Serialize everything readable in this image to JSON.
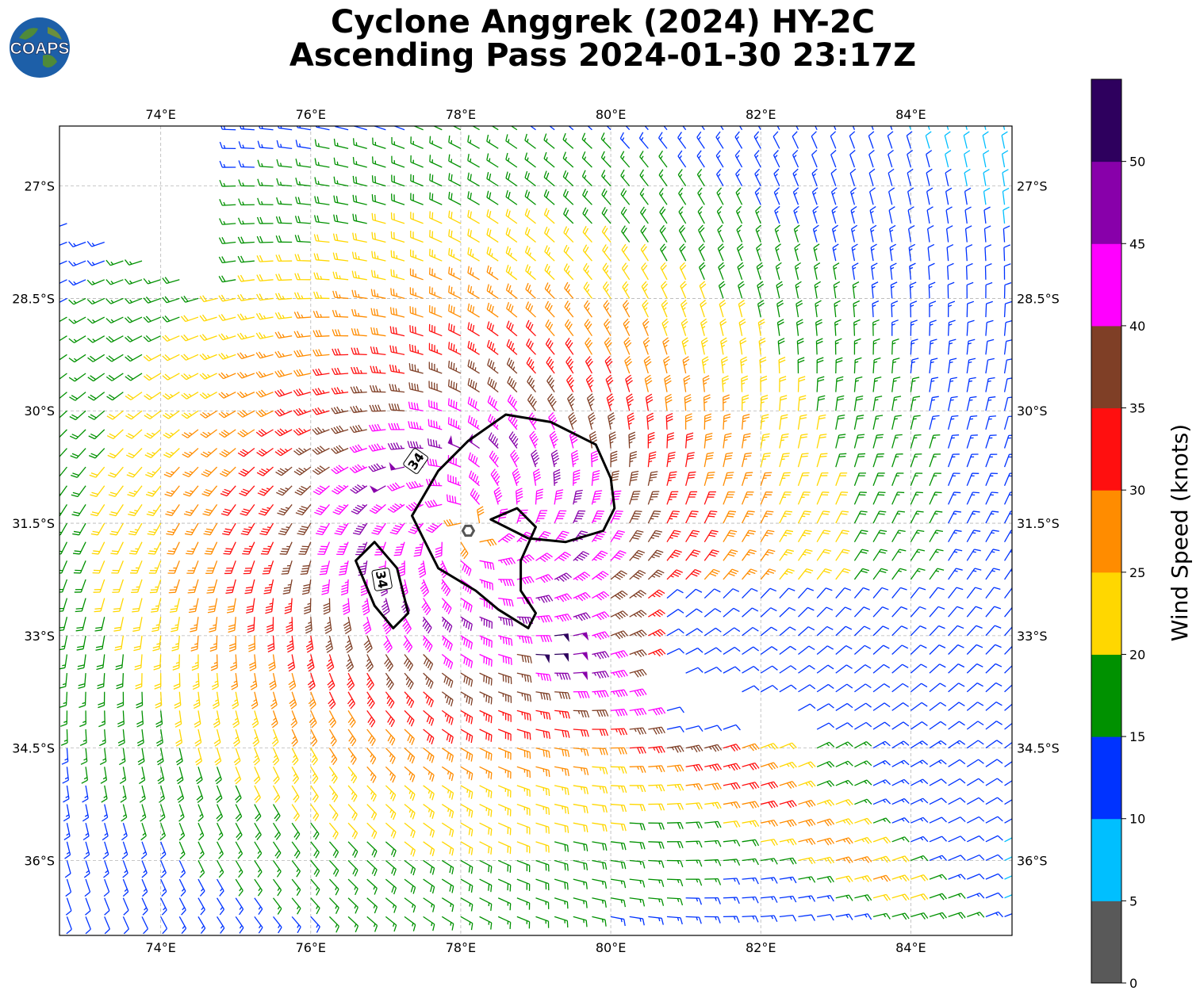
{
  "title": {
    "line1": "Cyclone Anggrek (2024) HY-2C",
    "line2": "Ascending Pass 2024-01-30 23:17Z"
  },
  "logo": {
    "text": "COAPS"
  },
  "map": {
    "lon_range": [
      72.65,
      85.35
    ],
    "lat_range": [
      -37.0,
      -26.2
    ],
    "lon_ticks": [
      "74°E",
      "76°E",
      "78°E",
      "80°E",
      "82°E",
      "84°E"
    ],
    "lat_ticks": [
      "27°S",
      "28.5°S",
      "30°S",
      "31.5°S",
      "33°S",
      "34.5°S",
      "36°S"
    ],
    "grid": true,
    "storm_center": {
      "lon": 78.1,
      "lat": -31.6
    },
    "contour_label": "34",
    "contour_34kt_main": [
      [
        78.6,
        -30.05
      ],
      [
        79.2,
        -30.15
      ],
      [
        79.8,
        -30.45
      ],
      [
        80.0,
        -30.9
      ],
      [
        80.05,
        -31.3
      ],
      [
        79.9,
        -31.6
      ],
      [
        79.4,
        -31.75
      ],
      [
        78.9,
        -31.7
      ],
      [
        78.4,
        -31.45
      ],
      [
        78.75,
        -31.3
      ],
      [
        79.0,
        -31.55
      ],
      [
        78.8,
        -32.0
      ],
      [
        78.8,
        -32.4
      ],
      [
        79.0,
        -32.7
      ],
      [
        78.9,
        -32.9
      ],
      [
        78.5,
        -32.65
      ],
      [
        78.2,
        -32.4
      ],
      [
        77.7,
        -32.1
      ],
      [
        77.5,
        -31.7
      ],
      [
        77.35,
        -31.4
      ],
      [
        77.7,
        -30.8
      ],
      [
        78.1,
        -30.4
      ]
    ],
    "contour_34kt_small": [
      [
        76.85,
        -31.75
      ],
      [
        77.15,
        -32.1
      ],
      [
        77.3,
        -32.7
      ],
      [
        77.1,
        -32.9
      ],
      [
        76.85,
        -32.6
      ],
      [
        76.6,
        -32.0
      ]
    ]
  },
  "colorbar": {
    "label": "Wind Speed (knots)",
    "ticks": [
      "0",
      "5",
      "10",
      "15",
      "20",
      "25",
      "30",
      "35",
      "40",
      "45",
      "50"
    ],
    "bins": [
      {
        "range": [
          0,
          5
        ],
        "color": "#595959"
      },
      {
        "range": [
          5,
          10
        ],
        "color": "#00bfff"
      },
      {
        "range": [
          10,
          15
        ],
        "color": "#0033ff"
      },
      {
        "range": [
          15,
          20
        ],
        "color": "#009100"
      },
      {
        "range": [
          20,
          25
        ],
        "color": "#ffd700"
      },
      {
        "range": [
          25,
          30
        ],
        "color": "#ff8c00"
      },
      {
        "range": [
          30,
          35
        ],
        "color": "#ff0f0f"
      },
      {
        "range": [
          35,
          40
        ],
        "color": "#7f3f26"
      },
      {
        "range": [
          40,
          45
        ],
        "color": "#ff00ff"
      },
      {
        "range": [
          45,
          50
        ],
        "color": "#8800aa"
      },
      {
        "range": [
          50,
          55
        ],
        "color": "#2e005e"
      }
    ]
  }
}
